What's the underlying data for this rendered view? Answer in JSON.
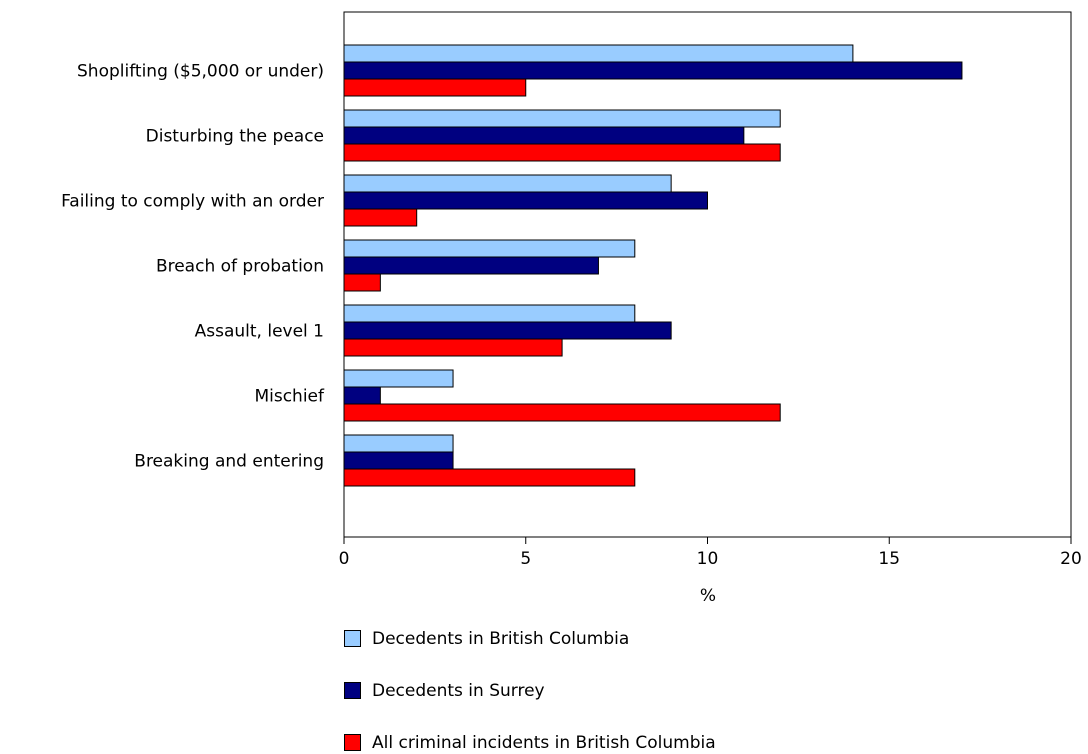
{
  "chart_data": {
    "type": "bar",
    "orientation": "horizontal",
    "categories": [
      "Shoplifting ($5,000 or under)",
      "Disturbing the peace",
      "Failing to comply with an order",
      "Breach of probation",
      "Assault, level 1",
      "Mischief",
      "Breaking and entering"
    ],
    "series": [
      {
        "name": "Decedents in British Columbia",
        "color": "#99ccff",
        "values": [
          14,
          12,
          9,
          8,
          8,
          3,
          3
        ]
      },
      {
        "name": "Decedents in Surrey",
        "color": "#000080",
        "values": [
          17,
          11,
          10,
          7,
          9,
          1,
          3
        ]
      },
      {
        "name": "All criminal incidents in British Columbia",
        "color": "#ff0000",
        "values": [
          5,
          12,
          2,
          1,
          6,
          12,
          8
        ]
      }
    ],
    "xlabel": "%",
    "xlim": [
      0,
      20
    ],
    "xticks": [
      "0",
      "5",
      "10",
      "15",
      "20"
    ],
    "legend_position": "bottom",
    "grid": false
  }
}
